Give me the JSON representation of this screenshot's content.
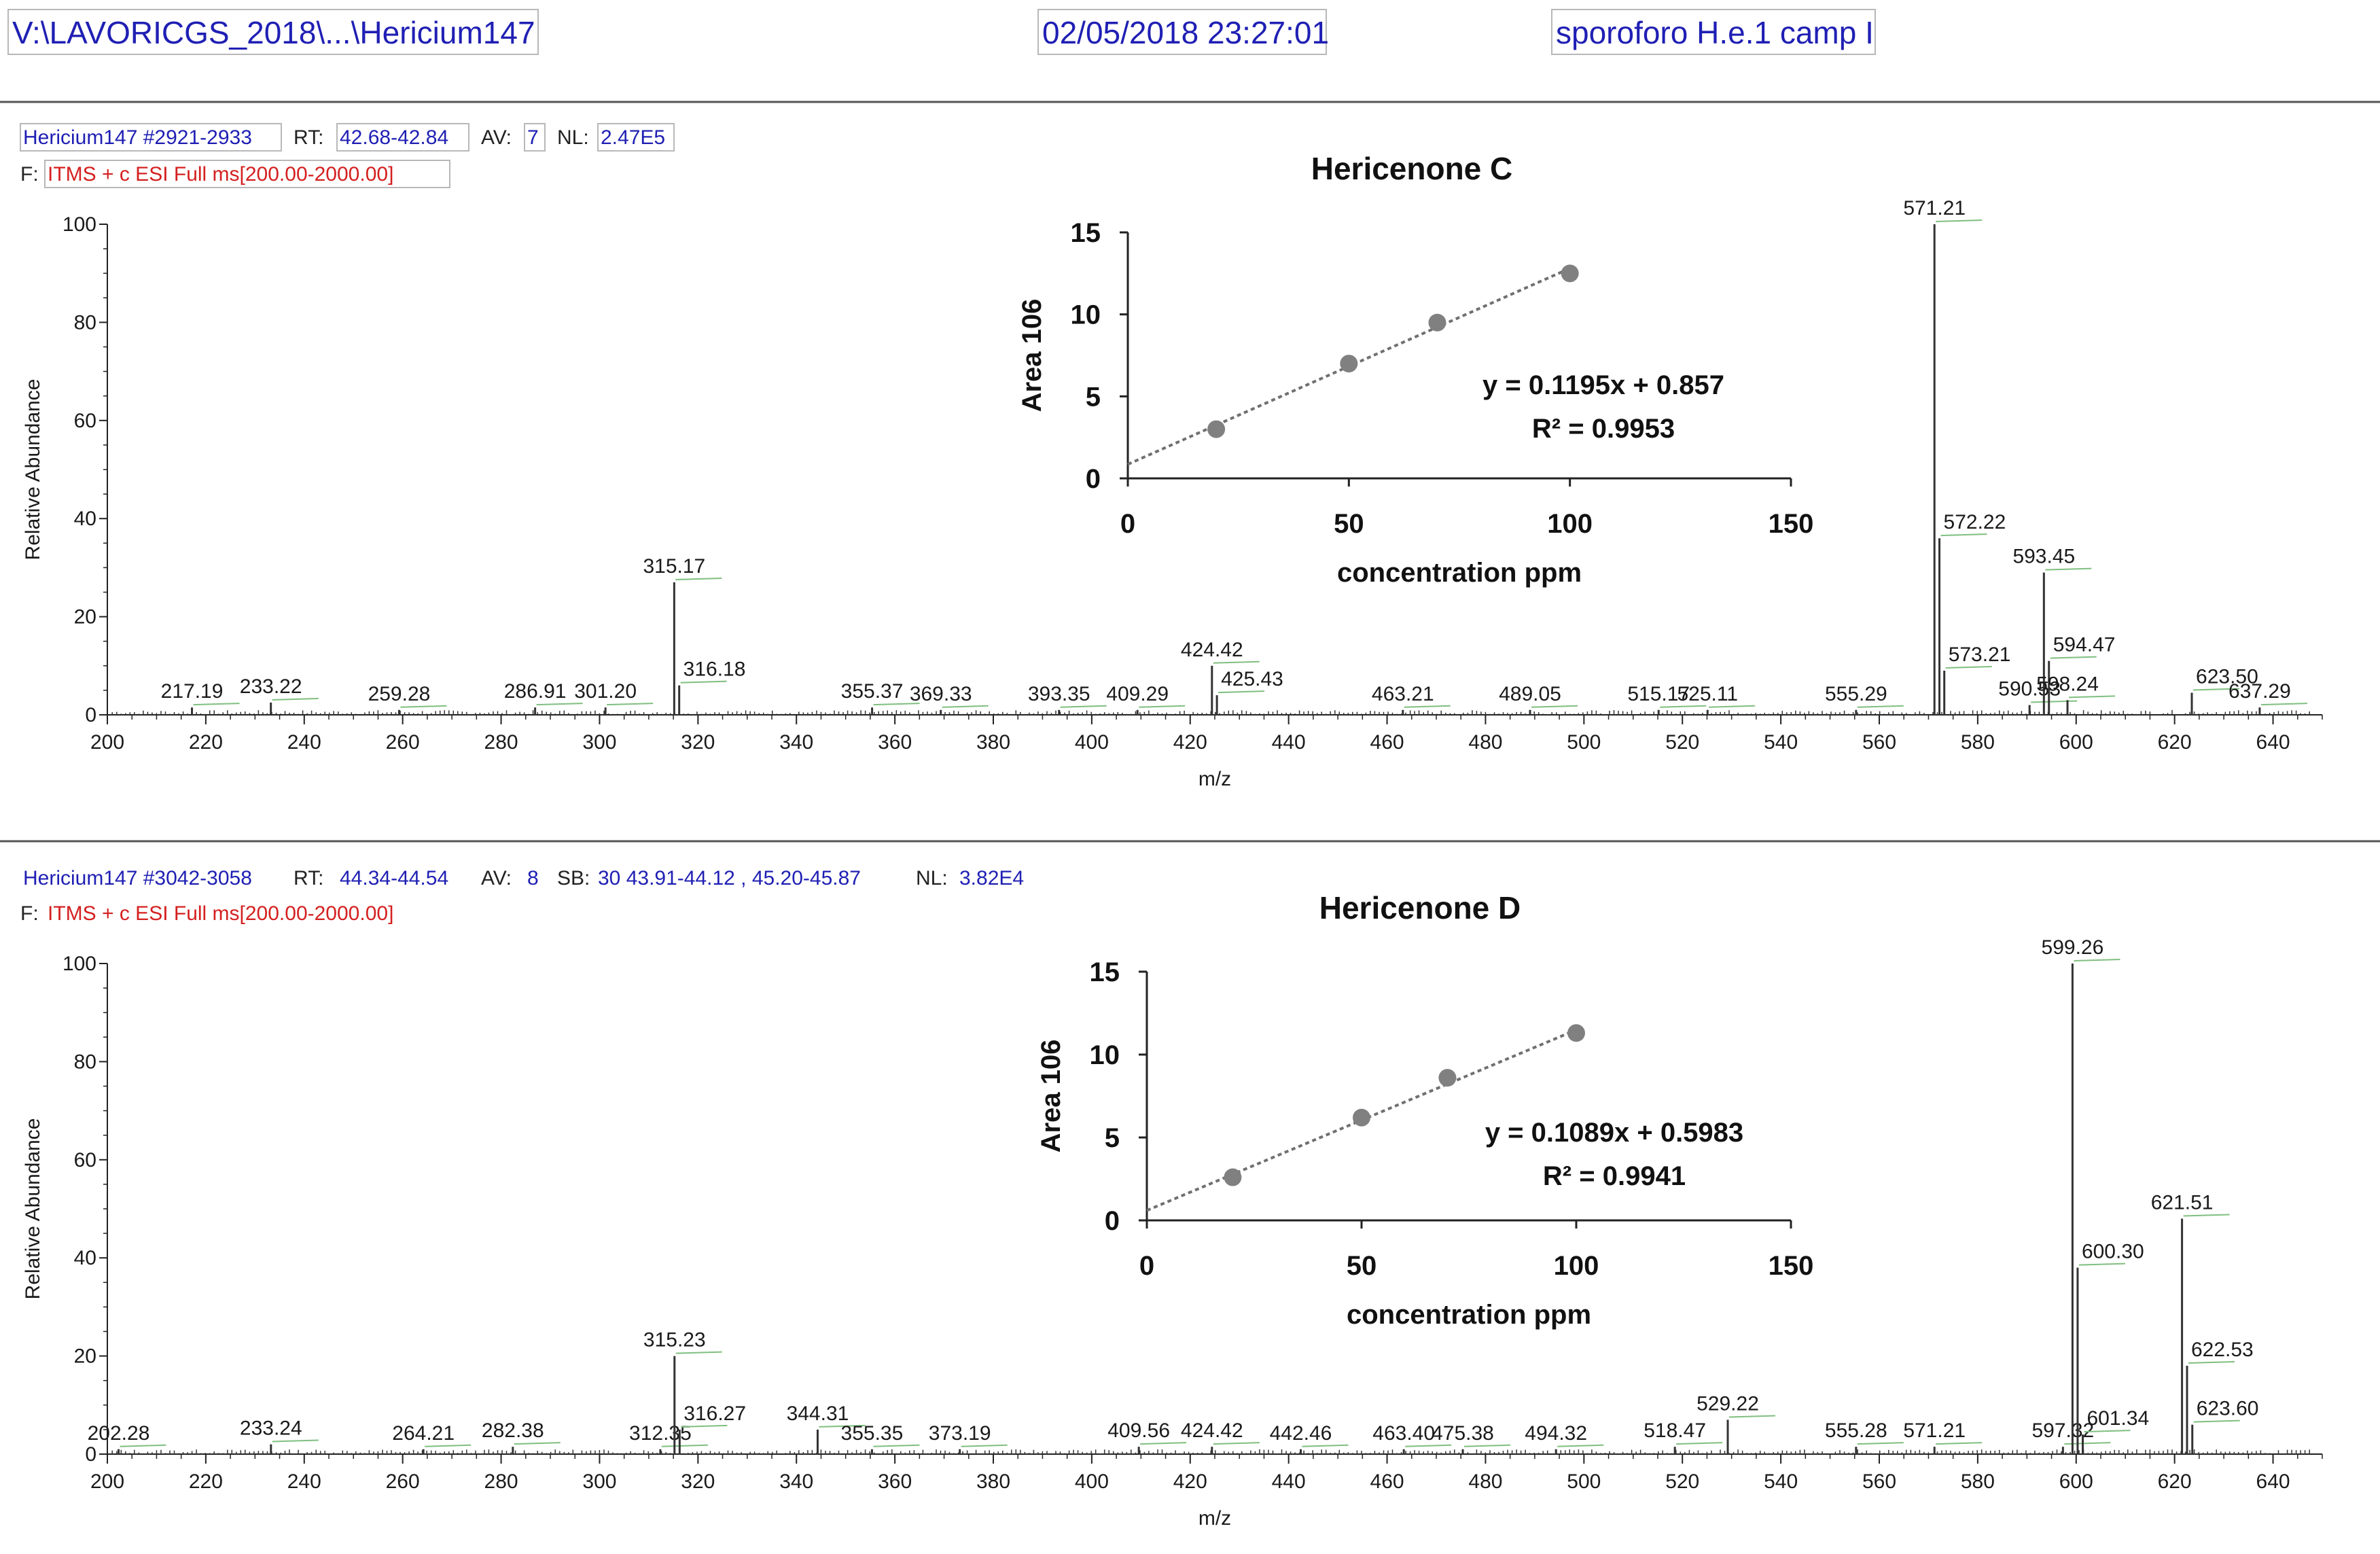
{
  "header": {
    "file_path": "V:\\LAVORICGS_2018\\...\\Hericium147",
    "datetime": "02/05/2018 23:27:01",
    "sample": "sporoforo H.e.1 camp I"
  },
  "colors": {
    "header_text": "#1f1fb4",
    "filter_text": "#d42020",
    "spectrum_line": "#333333",
    "label_text": "#1a1a1a",
    "label_tick": "#7fbf7f",
    "inset_point": "#808080",
    "inset_trend": "#707070"
  },
  "spectra": [
    {
      "scan_label": "Hericium147 #2921-2933",
      "rt_key": "RT:",
      "rt_value": "42.68-42.84",
      "av_key": "AV:",
      "av_value": "7",
      "sb_key": "",
      "sb_value": "",
      "nl_key": "NL:",
      "nl_value": "2.47E5",
      "filter_key": "F:",
      "filter_value": "ITMS + c ESI Full ms[200.00-2000.00]",
      "ylabel": "Relative Abundance",
      "xlabel": "m/z",
      "y_ticks": [
        "0",
        "20",
        "40",
        "60",
        "80",
        "100"
      ],
      "x_ticks": [
        "200",
        "220",
        "240",
        "260",
        "280",
        "300",
        "320",
        "340",
        "360",
        "380",
        "400",
        "420",
        "440",
        "460",
        "480",
        "500",
        "520",
        "540",
        "560",
        "580",
        "600",
        "620",
        "640"
      ]
    },
    {
      "scan_label": "Hericium147 #3042-3058",
      "rt_key": "RT:",
      "rt_value": "44.34-44.54",
      "av_key": "AV:",
      "av_value": "8",
      "sb_key": "SB:",
      "sb_value": "30 43.91-44.12 , 45.20-45.87",
      "nl_key": "NL:",
      "nl_value": "3.82E4",
      "filter_key": "F:",
      "filter_value": "ITMS + c ESI Full ms[200.00-2000.00]",
      "ylabel": "Relative Abundance",
      "xlabel": "m/z",
      "y_ticks": [
        "0",
        "20",
        "40",
        "60",
        "80",
        "100"
      ],
      "x_ticks": [
        "200",
        "220",
        "240",
        "260",
        "280",
        "300",
        "320",
        "340",
        "360",
        "380",
        "400",
        "420",
        "440",
        "460",
        "480",
        "500",
        "520",
        "540",
        "560",
        "580",
        "600",
        "620",
        "640"
      ]
    }
  ],
  "insets": [
    {
      "title": "Hericenone C",
      "ylabel": "Area 106",
      "xlabel": "concentration ppm",
      "x_ticks": [
        "0",
        "50",
        "100",
        "150"
      ],
      "y_ticks": [
        "0",
        "5",
        "10",
        "15"
      ],
      "equation": "y = 0.1195x + 0.857",
      "r2": "R² = 0.9953"
    },
    {
      "title": "Hericenone D",
      "ylabel": "Area 106",
      "xlabel": "concentration ppm",
      "x_ticks": [
        "0",
        "50",
        "100",
        "150"
      ],
      "y_ticks": [
        "0",
        "5",
        "10",
        "15"
      ],
      "equation": "y = 0.1089x + 0.5983",
      "r2": "R² = 0.9941"
    }
  ],
  "chart_data": [
    {
      "type": "bar",
      "title": "Hericium147 #2921-2933 mass spectrum",
      "xlabel": "m/z",
      "ylabel": "Relative Abundance",
      "xlim": [
        200,
        650
      ],
      "ylim": [
        0,
        100
      ],
      "peaks": [
        {
          "mz": 217.19,
          "rel": 1.5,
          "label": "217.19"
        },
        {
          "mz": 233.22,
          "rel": 2.5,
          "label": "233.22"
        },
        {
          "mz": 259.28,
          "rel": 1.0,
          "label": "259.28"
        },
        {
          "mz": 286.91,
          "rel": 1.5,
          "label": "286.91"
        },
        {
          "mz": 301.2,
          "rel": 1.5,
          "label": "301.20"
        },
        {
          "mz": 315.17,
          "rel": 27,
          "label": "315.17"
        },
        {
          "mz": 316.18,
          "rel": 6,
          "label": "316.18"
        },
        {
          "mz": 355.37,
          "rel": 1.5,
          "label": "355.37"
        },
        {
          "mz": 369.33,
          "rel": 1.0,
          "label": "369.33"
        },
        {
          "mz": 393.35,
          "rel": 1.0,
          "label": "393.35"
        },
        {
          "mz": 409.29,
          "rel": 1.0,
          "label": "409.29"
        },
        {
          "mz": 424.42,
          "rel": 10,
          "label": "424.42"
        },
        {
          "mz": 425.43,
          "rel": 4,
          "label": "425.43"
        },
        {
          "mz": 463.21,
          "rel": 1.0,
          "label": "463.21"
        },
        {
          "mz": 489.05,
          "rel": 1.0,
          "label": "489.05"
        },
        {
          "mz": 515.17,
          "rel": 1.0,
          "label": "515.17"
        },
        {
          "mz": 525.11,
          "rel": 1.0,
          "label": "525.11"
        },
        {
          "mz": 555.29,
          "rel": 1.0,
          "label": "555.29"
        },
        {
          "mz": 571.21,
          "rel": 100,
          "label": "571.21"
        },
        {
          "mz": 572.22,
          "rel": 36,
          "label": "572.22"
        },
        {
          "mz": 573.21,
          "rel": 9,
          "label": "573.21"
        },
        {
          "mz": 590.53,
          "rel": 2,
          "label": "590.53"
        },
        {
          "mz": 593.45,
          "rel": 29,
          "label": "593.45"
        },
        {
          "mz": 594.47,
          "rel": 11,
          "label": "594.47"
        },
        {
          "mz": 598.24,
          "rel": 3,
          "label": "598.24"
        },
        {
          "mz": 623.5,
          "rel": 4.5,
          "label": "623.50"
        },
        {
          "mz": 637.29,
          "rel": 1.5,
          "label": "637.29"
        }
      ]
    },
    {
      "type": "scatter",
      "title": "Hericenone C",
      "xlabel": "concentration ppm",
      "ylabel": "Area 106",
      "xlim": [
        0,
        150
      ],
      "ylim": [
        0,
        15
      ],
      "x": [
        20,
        50,
        70,
        100
      ],
      "y": [
        3.0,
        7.0,
        9.5,
        12.5
      ],
      "trendline": {
        "slope": 0.1195,
        "intercept": 0.857
      }
    },
    {
      "type": "bar",
      "title": "Hericium147 #3042-3058 mass spectrum",
      "xlabel": "m/z",
      "ylabel": "Relative Abundance",
      "xlim": [
        200,
        650
      ],
      "ylim": [
        0,
        100
      ],
      "peaks": [
        {
          "mz": 202.28,
          "rel": 1.0,
          "label": "202.28"
        },
        {
          "mz": 233.24,
          "rel": 2.0,
          "label": "233.24"
        },
        {
          "mz": 264.21,
          "rel": 1.0,
          "label": "264.21"
        },
        {
          "mz": 282.38,
          "rel": 1.5,
          "label": "282.38"
        },
        {
          "mz": 312.35,
          "rel": 1.0,
          "label": "312.35"
        },
        {
          "mz": 315.23,
          "rel": 20,
          "label": "315.23"
        },
        {
          "mz": 316.27,
          "rel": 5,
          "label": "316.27"
        },
        {
          "mz": 344.31,
          "rel": 5,
          "label": "344.31"
        },
        {
          "mz": 355.35,
          "rel": 1.0,
          "label": "355.35"
        },
        {
          "mz": 373.19,
          "rel": 1.0,
          "label": "373.19"
        },
        {
          "mz": 409.56,
          "rel": 1.5,
          "label": "409.56"
        },
        {
          "mz": 424.42,
          "rel": 1.5,
          "label": "424.42"
        },
        {
          "mz": 442.46,
          "rel": 1.0,
          "label": "442.46"
        },
        {
          "mz": 463.4,
          "rel": 1.0,
          "label": "463.40"
        },
        {
          "mz": 475.38,
          "rel": 1.0,
          "label": "475.38"
        },
        {
          "mz": 494.32,
          "rel": 1.0,
          "label": "494.32"
        },
        {
          "mz": 518.47,
          "rel": 1.5,
          "label": "518.47"
        },
        {
          "mz": 529.22,
          "rel": 7,
          "label": "529.22"
        },
        {
          "mz": 555.28,
          "rel": 1.5,
          "label": "555.28"
        },
        {
          "mz": 571.21,
          "rel": 1.5,
          "label": "571.21"
        },
        {
          "mz": 597.32,
          "rel": 1.5,
          "label": "597.32"
        },
        {
          "mz": 599.26,
          "rel": 100,
          "label": "599.26"
        },
        {
          "mz": 600.3,
          "rel": 38,
          "label": "600.30"
        },
        {
          "mz": 601.34,
          "rel": 4,
          "label": "601.34"
        },
        {
          "mz": 621.51,
          "rel": 48,
          "label": "621.51"
        },
        {
          "mz": 622.53,
          "rel": 18,
          "label": "622.53"
        },
        {
          "mz": 623.6,
          "rel": 6,
          "label": "623.60"
        }
      ]
    },
    {
      "type": "scatter",
      "title": "Hericenone D",
      "xlabel": "concentration ppm",
      "ylabel": "Area 106",
      "xlim": [
        0,
        150
      ],
      "ylim": [
        0,
        15
      ],
      "x": [
        20,
        50,
        70,
        100
      ],
      "y": [
        2.6,
        6.2,
        8.6,
        11.3
      ],
      "trendline": {
        "slope": 0.1089,
        "intercept": 0.5983
      }
    }
  ]
}
